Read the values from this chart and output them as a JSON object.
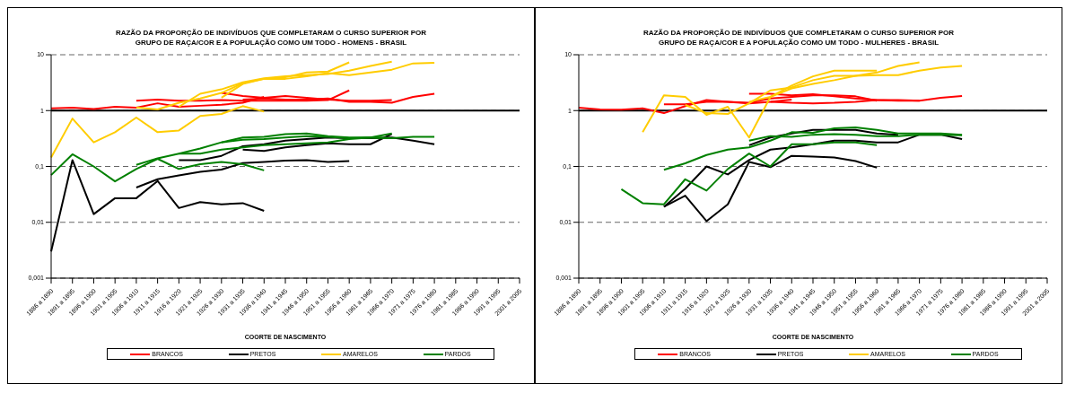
{
  "chart_data": [
    {
      "type": "line",
      "title": "RAZÃO DA PROPORÇÃO DE INDIVÍDUOS QUE COMPLETARAM O CURSO SUPERIOR POR\nGRUPO DE RAÇA/COR E A POPULAÇÃO COMO UM TODO - HOMENS - BRASIL",
      "xlabel": "COORTE DE NASCIMENTO",
      "categories": [
        "1886 a 1890",
        "1891 a 1895",
        "1896 a 1900",
        "1901 a 1905",
        "1906 a 1910",
        "1911 a 1915",
        "1916 a 1920",
        "1921 a 1925",
        "1926 a 1930",
        "1931 a 1935",
        "1936 a 1940",
        "1941 a 1945",
        "1946 a 1950",
        "1951 a 1955",
        "1956 a 1960",
        "1961 a 1965",
        "1966 a 1970",
        "1971 a 1975",
        "1976 a 1980",
        "1981 a 1985",
        "1986 a 1990",
        "1991 a 1995",
        "2001 a 2005"
      ],
      "log": true,
      "ylim": [
        0.001,
        10
      ],
      "yticks": [
        {
          "value": 0.001,
          "label": "0,001"
        },
        {
          "value": 0.01,
          "label": "0,01"
        },
        {
          "value": 0.1,
          "label": "0,1"
        },
        {
          "value": 1,
          "label": "1"
        },
        {
          "value": 10,
          "label": "10"
        }
      ],
      "grid": "y",
      "legend": "bottom",
      "marker": "none",
      "line_style": "solid",
      "ref_lines": [
        {
          "axis": "y",
          "value": 1,
          "color": "#000000"
        }
      ],
      "series": [
        {
          "name": "BRANCOS",
          "color": "#ff0000",
          "values": [
            1.1,
            1.13,
            1.07,
            1.17,
            1.13,
            1.35,
            1.17,
            1.22,
            1.27,
            1.38,
            1.76,
            null,
            null,
            null,
            null,
            null,
            null,
            null,
            null,
            null,
            null,
            null,
            null
          ]
        },
        {
          "color": "#ff0000",
          "values": [
            null,
            null,
            null,
            null,
            1.5,
            1.58,
            1.5,
            1.5,
            1.54,
            1.5,
            1.5,
            1.5,
            1.5,
            1.54,
            2.3,
            null,
            null,
            null,
            null,
            null,
            null,
            null,
            null
          ]
        },
        {
          "color": "#ff0000",
          "values": [
            null,
            null,
            null,
            null,
            null,
            null,
            null,
            null,
            2.07,
            1.83,
            1.7,
            1.83,
            1.7,
            1.58,
            1.5,
            1.5,
            1.54,
            null,
            null,
            null,
            null,
            null,
            null
          ]
        },
        {
          "color": "#ff0000",
          "values": [
            null,
            null,
            null,
            null,
            null,
            null,
            null,
            null,
            null,
            1.58,
            1.65,
            1.58,
            1.58,
            1.65,
            1.44,
            1.44,
            1.38,
            1.76,
            2.0,
            null,
            null,
            null,
            null
          ]
        },
        {
          "name": "PRETOS",
          "color": "#000000",
          "values": [
            0.003,
            0.13,
            0.014,
            0.027,
            0.027,
            0.055,
            0.018,
            0.023,
            0.021,
            0.022,
            0.016,
            null,
            null,
            null,
            null,
            null,
            null,
            null,
            null,
            null,
            null,
            null,
            null
          ]
        },
        {
          "color": "#000000",
          "values": [
            null,
            null,
            null,
            null,
            0.042,
            0.059,
            0.069,
            0.08,
            0.088,
            0.115,
            0.12,
            0.127,
            0.13,
            0.12,
            0.125,
            null,
            null,
            null,
            null,
            null,
            null,
            null,
            null
          ]
        },
        {
          "color": "#000000",
          "values": [
            null,
            null,
            null,
            null,
            null,
            null,
            0.13,
            0.13,
            0.155,
            0.23,
            0.25,
            0.29,
            0.31,
            0.33,
            0.32,
            0.32,
            0.33,
            0.29,
            0.25,
            null,
            null,
            null,
            null
          ]
        },
        {
          "color": "#000000",
          "values": [
            null,
            null,
            null,
            null,
            null,
            null,
            null,
            null,
            null,
            0.2,
            0.19,
            0.22,
            0.24,
            0.26,
            0.25,
            0.25,
            0.38,
            null,
            null,
            null,
            null,
            null,
            null
          ]
        },
        {
          "name": "AMARELOS",
          "color": "#ffcc00",
          "values": [
            0.145,
            0.72,
            0.27,
            0.41,
            0.75,
            0.41,
            0.44,
            0.8,
            0.87,
            1.2,
            0.96,
            null,
            null,
            null,
            null,
            null,
            null,
            null,
            null,
            null,
            null,
            null,
            null
          ]
        },
        {
          "color": "#ffcc00",
          "values": [
            null,
            null,
            null,
            null,
            1.14,
            1.05,
            1.38,
            1.65,
            2.07,
            3.1,
            3.7,
            3.95,
            4.8,
            5.0,
            7.3,
            null,
            null,
            null,
            null,
            null,
            null,
            null,
            null
          ]
        },
        {
          "color": "#ffcc00",
          "values": [
            null,
            null,
            null,
            null,
            null,
            null,
            1.17,
            2.0,
            2.4,
            3.2,
            3.8,
            4.1,
            4.3,
            4.5,
            5.2,
            6.3,
            7.5,
            null,
            null,
            null,
            null,
            null,
            null
          ]
        },
        {
          "color": "#ffcc00",
          "values": [
            null,
            null,
            null,
            null,
            null,
            null,
            null,
            null,
            1.7,
            3.0,
            3.7,
            3.7,
            4.1,
            4.7,
            4.3,
            4.8,
            5.4,
            7.0,
            7.2,
            null,
            null,
            null,
            null
          ]
        },
        {
          "name": "PARDOS",
          "color": "#008000",
          "values": [
            0.07,
            0.165,
            0.1,
            0.054,
            0.09,
            0.137,
            0.09,
            0.11,
            0.12,
            0.11,
            0.085,
            null,
            null,
            null,
            null,
            null,
            null,
            null,
            null,
            null,
            null,
            null,
            null
          ]
        },
        {
          "color": "#008000",
          "values": [
            null,
            null,
            null,
            null,
            0.107,
            0.14,
            0.17,
            0.17,
            0.2,
            0.22,
            0.24,
            0.25,
            0.26,
            0.27,
            0.31,
            0.33,
            0.39,
            null,
            null,
            null,
            null,
            null,
            null
          ]
        },
        {
          "color": "#008000",
          "values": [
            null,
            null,
            null,
            null,
            null,
            null,
            0.17,
            0.21,
            0.27,
            0.33,
            0.34,
            0.38,
            0.39,
            0.35,
            0.33,
            0.33,
            0.32,
            null,
            null,
            null,
            null,
            null,
            null
          ]
        },
        {
          "color": "#008000",
          "values": [
            null,
            null,
            null,
            null,
            null,
            null,
            null,
            null,
            0.27,
            0.3,
            0.31,
            0.33,
            0.35,
            0.34,
            0.32,
            0.33,
            0.32,
            0.34,
            0.34,
            null,
            null,
            null,
            null
          ]
        }
      ]
    },
    {
      "type": "line",
      "title": "RAZÃO DA PROPORÇÃO DE INDIVÍDUOS QUE COMPLETARAM O CURSO SUPERIOR POR\nGRUPO DE RAÇA/COR E A POPULAÇÃO COMO UM TODO - MULHERES - BRASIL",
      "xlabel": "COORTE DE NASCIMENTO",
      "categories": [
        "1886 a 1890",
        "1891 a 1895",
        "1896 a 1900",
        "1901 a 1905",
        "1906 a 1910",
        "1911 a 1915",
        "1916 a 1920",
        "1921 a 1925",
        "1926 a 1930",
        "1931 a 1935",
        "1936 a 1940",
        "1941 a 1945",
        "1946 a 1950",
        "1951 a 1955",
        "1956 a 1960",
        "1961 a 1965",
        "1966 a 1970",
        "1971 a 1975",
        "1976 a 1980",
        "1981 a 1985",
        "1986 a 1990",
        "1991 a 1995",
        "2001 a 2005"
      ],
      "log": true,
      "ylim": [
        0.001,
        10
      ],
      "yticks": [
        {
          "value": 0.001,
          "label": "0,001"
        },
        {
          "value": 0.01,
          "label": "0,01"
        },
        {
          "value": 0.1,
          "label": "0,1"
        },
        {
          "value": 1,
          "label": "1"
        },
        {
          "value": 10,
          "label": "10"
        }
      ],
      "grid": "y",
      "legend": "bottom",
      "marker": "none",
      "line_style": "solid",
      "ref_lines": [
        {
          "axis": "y",
          "value": 1,
          "color": "#000000"
        }
      ],
      "series": [
        {
          "name": "BRANCOS",
          "color": "#ff0000",
          "values": [
            1.13,
            1.05,
            1.04,
            1.1,
            0.9,
            1.2,
            1.54,
            1.44,
            1.35,
            1.44,
            1.58,
            null,
            null,
            null,
            null,
            null,
            null,
            null,
            null,
            null,
            null,
            null,
            null
          ]
        },
        {
          "color": "#ff0000",
          "values": [
            null,
            null,
            null,
            null,
            1.29,
            1.3,
            1.44,
            1.44,
            1.38,
            1.65,
            1.76,
            1.88,
            1.88,
            1.8,
            1.5,
            null,
            null,
            null,
            null,
            null,
            null,
            null,
            null
          ]
        },
        {
          "color": "#ff0000",
          "values": [
            null,
            null,
            null,
            null,
            null,
            null,
            null,
            null,
            2.0,
            2.0,
            1.88,
            1.96,
            1.8,
            1.65,
            1.54,
            1.5,
            1.5,
            null,
            null,
            null,
            null,
            null,
            null
          ]
        },
        {
          "color": "#ff0000",
          "values": [
            null,
            null,
            null,
            null,
            null,
            null,
            null,
            null,
            null,
            1.44,
            1.38,
            1.35,
            1.38,
            1.44,
            1.54,
            1.54,
            1.5,
            1.7,
            1.83,
            null,
            null,
            null,
            null
          ]
        },
        {
          "name": "PRETOS",
          "color": "#000000",
          "values": [
            null,
            null,
            null,
            null,
            0.019,
            0.03,
            0.0105,
            0.021,
            0.12,
            0.097,
            0.155,
            0.15,
            0.145,
            0.125,
            0.095,
            null,
            null,
            null,
            null,
            null,
            null,
            null,
            null
          ]
        },
        {
          "color": "#000000",
          "values": [
            null,
            null,
            null,
            null,
            0.019,
            0.04,
            0.1,
            0.072,
            0.13,
            0.2,
            0.22,
            0.25,
            0.29,
            0.29,
            0.27,
            0.27,
            0.37,
            0.37,
            0.31,
            null,
            null,
            null,
            null
          ]
        },
        {
          "color": "#000000",
          "values": [
            null,
            null,
            null,
            null,
            null,
            null,
            null,
            null,
            0.24,
            0.33,
            0.39,
            0.45,
            0.45,
            0.45,
            0.39,
            0.37,
            null,
            null,
            null,
            null,
            null,
            null,
            null
          ]
        },
        {
          "name": "AMARELOS",
          "color": "#ffcc00",
          "values": [
            null,
            null,
            null,
            0.41,
            1.88,
            1.76,
            0.84,
            1.17,
            0.33,
            1.76,
            2.8,
            4.1,
            5.2,
            5.2,
            5.2,
            null,
            null,
            null,
            null,
            null,
            null,
            null,
            null
          ]
        },
        {
          "color": "#ffcc00",
          "values": [
            null,
            null,
            null,
            null,
            null,
            1.26,
            0.9,
            0.87,
            1.35,
            2.3,
            2.6,
            3.5,
            4.2,
            4.2,
            4.8,
            6.3,
            7.3,
            null,
            null,
            null,
            null,
            null,
            null
          ]
        },
        {
          "color": "#ffcc00",
          "values": [
            null,
            null,
            null,
            null,
            null,
            null,
            null,
            null,
            1.44,
            1.76,
            2.5,
            3.0,
            3.5,
            4.2,
            4.3,
            4.3,
            5.2,
            5.9,
            6.3,
            null,
            null,
            null,
            null
          ]
        },
        {
          "name": "PARDOS",
          "color": "#008000",
          "values": [
            null,
            null,
            0.039,
            0.022,
            0.021,
            0.059,
            0.037,
            0.09,
            0.17,
            0.1,
            0.25,
            0.25,
            0.27,
            0.27,
            0.24,
            null,
            null,
            null,
            null,
            null,
            null,
            null,
            null
          ]
        },
        {
          "color": "#008000",
          "values": [
            null,
            null,
            null,
            null,
            0.087,
            0.114,
            0.16,
            0.2,
            0.22,
            0.29,
            0.41,
            0.4,
            0.48,
            0.5,
            0.45,
            0.39,
            0.39,
            0.39,
            0.37,
            null,
            null,
            null,
            null
          ]
        },
        {
          "color": "#008000",
          "values": [
            null,
            null,
            null,
            null,
            null,
            null,
            null,
            null,
            0.29,
            0.35,
            0.34,
            0.37,
            0.38,
            0.37,
            0.35,
            0.35,
            0.37,
            0.37,
            0.36,
            null,
            null,
            null,
            null
          ]
        }
      ]
    }
  ]
}
